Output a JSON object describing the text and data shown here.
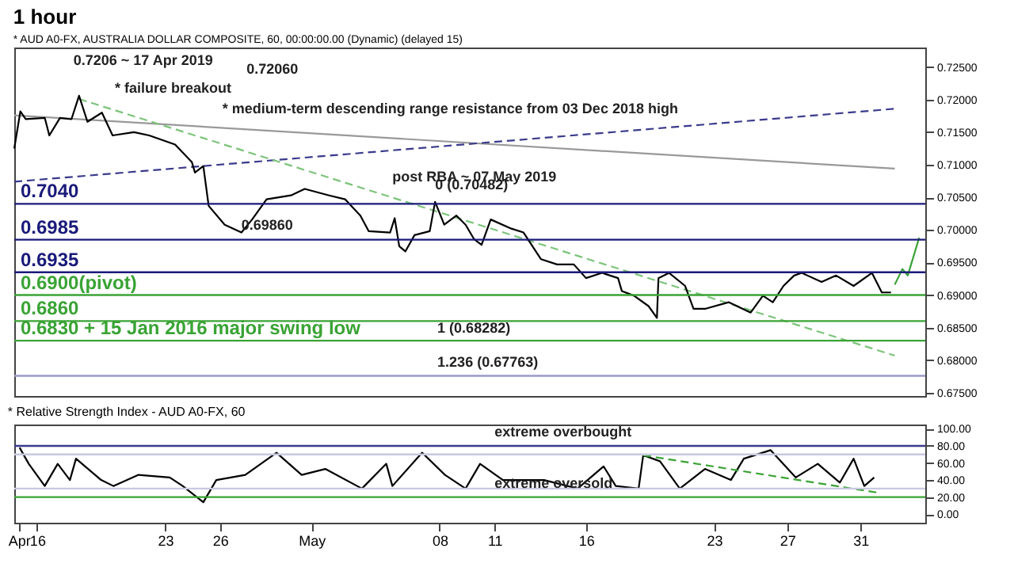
{
  "chart_data": [
    {
      "type": "line",
      "title": "1 hour",
      "subtitle": "* AUD A0-FX, AUSTRALIA DOLLAR COMPOSITE, 60, 00:00:00.00 (Dynamic) (delayed 15)",
      "xlim": [
        "2019-04-14T18:00",
        "2019-06-03T13:00"
      ],
      "ylim": [
        0.6745,
        0.728
      ],
      "yticks": [
        {
          "value": 0.675,
          "label": "0.67500"
        },
        {
          "value": 0.68,
          "label": "0.68000"
        },
        {
          "value": 0.685,
          "label": "0.68500"
        },
        {
          "value": 0.69,
          "label": "0.69000"
        },
        {
          "value": 0.695,
          "label": "0.69500"
        },
        {
          "value": 0.7,
          "label": "0.70000"
        },
        {
          "value": 0.705,
          "label": "0.70500"
        },
        {
          "value": 0.71,
          "label": "0.71000"
        },
        {
          "value": 0.715,
          "label": "0.71500"
        },
        {
          "value": 0.72,
          "label": "0.72000"
        },
        {
          "value": 0.725,
          "label": "0.72500"
        }
      ],
      "tick_labels": "y",
      "series": [
        {
          "color": "#999999",
          "line_style": "solid",
          "x": [
            "2019-04-14T18:00",
            "2019-06-01T21:00"
          ],
          "values": [
            0.7176,
            0.7094
          ]
        },
        {
          "color": "#3a3a8c",
          "line_style": "dashed",
          "x": [
            "2019-04-14T18:00",
            "2019-06-01T21:00"
          ],
          "values": [
            0.7074,
            0.7186
          ]
        },
        {
          "color": "#7cc47a",
          "line_style": "dashed",
          "x": [
            "2019-04-18T07:00",
            "2019-06-01T21:00"
          ],
          "values": [
            0.7201,
            0.6807
          ]
        },
        {
          "color": "#000000",
          "line_style": "solid",
          "x": [
            "2019-04-14T18:00",
            "2019-04-15T02:00",
            "2019-04-15T09:00",
            "2019-04-16T10:00",
            "2019-04-16T16:00",
            "2019-04-17T06:00",
            "2019-04-17T21:00",
            "2019-04-18T07:00",
            "2019-04-18T18:00",
            "2019-04-19T13:00",
            "2019-04-20T03:00",
            "2019-04-21T07:00",
            "2019-04-22T03:00",
            "2019-04-23T13:00",
            "2019-04-24T11:00",
            "2019-04-24T15:00",
            "2019-04-25T02:00",
            "2019-04-25T09:00",
            "2019-04-26T06:00",
            "2019-04-27T04:00",
            "2019-04-27T18:00",
            "2019-04-28T13:00",
            "2019-04-29T21:00",
            "2019-04-30T15:00",
            "2019-05-01T23:00",
            "2019-05-02T20:00",
            "2019-05-03T16:00",
            "2019-05-04T03:00",
            "2019-05-05T07:00",
            "2019-05-05T13:00",
            "2019-05-05T19:00",
            "2019-05-06T03:00",
            "2019-05-06T15:00",
            "2019-05-07T11:00",
            "2019-05-07T18:00",
            "2019-05-08T06:00",
            "2019-05-08T22:00",
            "2019-05-09T10:00",
            "2019-05-09T21:00",
            "2019-05-10T07:00",
            "2019-05-10T19:00",
            "2019-05-11T22:00",
            "2019-05-12T14:00",
            "2019-05-13T13:00",
            "2019-05-14T10:00",
            "2019-05-15T08:00",
            "2019-05-16T00:00",
            "2019-05-16T21:00",
            "2019-05-17T18:00",
            "2019-05-17T23:00",
            "2019-05-18T15:00",
            "2019-05-19T10:00",
            "2019-05-19T21:00",
            "2019-05-19T23:00",
            "2019-05-20T13:00",
            "2019-05-21T10:00",
            "2019-05-21T21:00",
            "2019-05-22T13:00",
            "2019-05-23T19:00",
            "2019-05-25T00:00",
            "2019-05-25T16:00",
            "2019-05-26T05:00",
            "2019-05-26T19:00",
            "2019-05-27T09:00",
            "2019-05-27T19:00",
            "2019-05-28T21:00",
            "2019-05-29T16:00",
            "2019-05-30T15:00",
            "2019-05-31T15:00",
            "2019-06-01T04:00",
            "2019-06-01T16:00"
          ],
          "values": [
            0.7125,
            0.7182,
            0.717,
            0.7172,
            0.7145,
            0.7172,
            0.717,
            0.7206,
            0.7166,
            0.718,
            0.7145,
            0.715,
            0.7145,
            0.7131,
            0.7104,
            0.7088,
            0.7098,
            0.7037,
            0.7008,
            0.6996,
            0.7016,
            0.7047,
            0.7053,
            0.7063,
            0.7053,
            0.7047,
            0.7022,
            0.6998,
            0.6996,
            0.7018,
            0.6975,
            0.6967,
            0.6992,
            0.6998,
            0.7043,
            0.7008,
            0.7022,
            0.7008,
            0.6986,
            0.6977,
            0.7016,
            0.7002,
            0.6996,
            0.6955,
            0.6947,
            0.6947,
            0.6926,
            0.6934,
            0.6926,
            0.6906,
            0.6899,
            0.6883,
            0.6865,
            0.6926,
            0.6934,
            0.6914,
            0.6879,
            0.6879,
            0.6889,
            0.6873,
            0.6899,
            0.6889,
            0.6914,
            0.693,
            0.6934,
            0.692,
            0.693,
            0.6914,
            0.6934,
            0.6904,
            0.6904
          ]
        },
        {
          "color": "#3aa335",
          "line_style": "solid",
          "x": [
            "2019-06-01T21:00",
            "2019-06-02T07:00",
            "2019-06-02T14:00",
            "2019-06-03T05:00"
          ],
          "values": [
            0.6916,
            0.694,
            0.693,
            0.6988
          ]
        }
      ],
      "ref_lines": [
        {
          "axis": "y",
          "value": 0.704,
          "label": "0.7040",
          "color": "#1a1a7a"
        },
        {
          "axis": "y",
          "value": 0.6985,
          "label": "0.6985",
          "color": "#1a1a7a"
        },
        {
          "axis": "y",
          "value": 0.6935,
          "label": "0.6935",
          "color": "#1a1a7a"
        },
        {
          "axis": "y",
          "value": 0.69,
          "label": "0.6900(pivot)",
          "color": "#3aa335"
        },
        {
          "axis": "y",
          "value": 0.686,
          "label": "0.6860",
          "color": "#3aa335"
        },
        {
          "axis": "y",
          "value": 0.683,
          "label": "0.6830 + 15 Jan 2016 major swing low",
          "color": "#3aa335"
        },
        {
          "axis": "y",
          "value": 0.6776,
          "color": "#9a9ac8"
        }
      ],
      "annotations": [
        "0.7206 ~ 17 Apr 2019",
        "0.72060",
        {
          "text": "* failure breakout",
          "x": "2019-04-20T06:00",
          "y": 0.7196
        },
        {
          "text": "* medium-term descending range resistance from 03 Dec 2018 high",
          "x": "2019-04-26T03:00",
          "y": 0.7165
        },
        {
          "text": "post RBA ~ 07 May 2019",
          "x": "2019-05-05T10:00",
          "y": 0.706
        },
        {
          "text": "0.69860",
          "x": "2019-04-27T04:00",
          "y": 0.6986
        },
        {
          "text": "0 (0.70482)",
          "x": "2019-05-07T18:00",
          "y": 0.7048
        },
        {
          "text": "1 (0.68282)",
          "x": "2019-05-07T21:00",
          "y": 0.6828
        },
        {
          "text": "1.236 (0.67763)",
          "x": "2019-05-07T21:00",
          "y": 0.6776
        }
      ]
    },
    {
      "type": "line",
      "title": "* Relative Strength Index - AUD A0-FX, 60",
      "xlim": [
        "2019-04-14T18:00",
        "2019-06-03T13:00"
      ],
      "xticks": [
        {
          "value": "2019-04-15",
          "label": "Apr"
        },
        {
          "value": "2019-04-16",
          "label": "16"
        },
        {
          "value": "2019-04-23",
          "label": "23"
        },
        {
          "value": "2019-04-26",
          "label": "26"
        },
        {
          "value": "2019-05-01",
          "label": "May"
        },
        {
          "value": "2019-05-08",
          "label": "08"
        },
        {
          "value": "2019-05-11",
          "label": "11"
        },
        {
          "value": "2019-05-16",
          "label": "16"
        },
        {
          "value": "2019-05-23",
          "label": "23"
        },
        {
          "value": "2019-05-27",
          "label": "27"
        },
        {
          "value": "2019-05-31",
          "label": "31"
        }
      ],
      "ylim": [
        -10,
        105
      ],
      "yticks": [
        {
          "value": 0,
          "label": "0.00"
        },
        {
          "value": 20,
          "label": "20.00"
        },
        {
          "value": 40,
          "label": "40.00"
        },
        {
          "value": 60,
          "label": "60.00"
        },
        {
          "value": 80,
          "label": "80.00"
        },
        {
          "value": 100,
          "label": "100.00"
        }
      ],
      "series": [
        {
          "color": "#000000",
          "line_style": "solid",
          "x": [
            "2019-04-15T01:00",
            "2019-04-15T13:00",
            "2019-04-16T10:00",
            "2019-04-17T03:00",
            "2019-04-17T19:00",
            "2019-04-18T03:00",
            "2019-04-19T12:00",
            "2019-04-20T04:00",
            "2019-04-21T13:00",
            "2019-04-23T06:00",
            "2019-04-23T23:00",
            "2019-04-25T02:00",
            "2019-04-25T19:00",
            "2019-04-27T09:00",
            "2019-04-29T02:00",
            "2019-04-30T11:00",
            "2019-05-01T18:00",
            "2019-05-03T18:00",
            "2019-05-05T02:00",
            "2019-05-05T10:00",
            "2019-05-07T01:00",
            "2019-05-08T07:00",
            "2019-05-09T10:00",
            "2019-05-10T05:00",
            "2019-05-11T11:00",
            "2019-05-13T17:00",
            "2019-05-15T13:00",
            "2019-05-16T23:00",
            "2019-05-17T15:00",
            "2019-05-18T21:00",
            "2019-05-19T03:00",
            "2019-05-20T01:00",
            "2019-05-21T03:00",
            "2019-05-22T12:00",
            "2019-05-23T22:00",
            "2019-05-24T15:00",
            "2019-05-26T02:00",
            "2019-05-27T11:00",
            "2019-05-28T16:00",
            "2019-05-29T21:00",
            "2019-05-30T15:00",
            "2019-05-31T05:00",
            "2019-05-31T18:00"
          ],
          "values": [
            78,
            59,
            33,
            59,
            40,
            65,
            40,
            33,
            46,
            43,
            33,
            14,
            40,
            46,
            72,
            46,
            53,
            30,
            59,
            33,
            72,
            46,
            30,
            59,
            40,
            40,
            30,
            56,
            33,
            30,
            69,
            62,
            30,
            53,
            40,
            65,
            75,
            43,
            59,
            37,
            65,
            33,
            43
          ]
        },
        {
          "color": "#3aa335",
          "line_style": "dashed",
          "x": [
            "2019-05-19T03:00",
            "2019-06-01T00:00"
          ],
          "values": [
            69,
            25
          ]
        }
      ],
      "ref_lines": [
        {
          "axis": "y",
          "value": 80,
          "color": "#3a3a8c"
        },
        {
          "axis": "y",
          "value": 70,
          "color": "#c8c8e0"
        },
        {
          "axis": "y",
          "value": 30,
          "color": "#c8c8e0"
        },
        {
          "axis": "y",
          "value": 20,
          "color": "#3aa335"
        }
      ],
      "annotations": [
        {
          "text": "extreme overbought",
          "x": "2019-05-11",
          "y": 80
        },
        {
          "text": "extreme oversold",
          "x": "2019-05-11",
          "y": 20
        }
      ]
    }
  ]
}
